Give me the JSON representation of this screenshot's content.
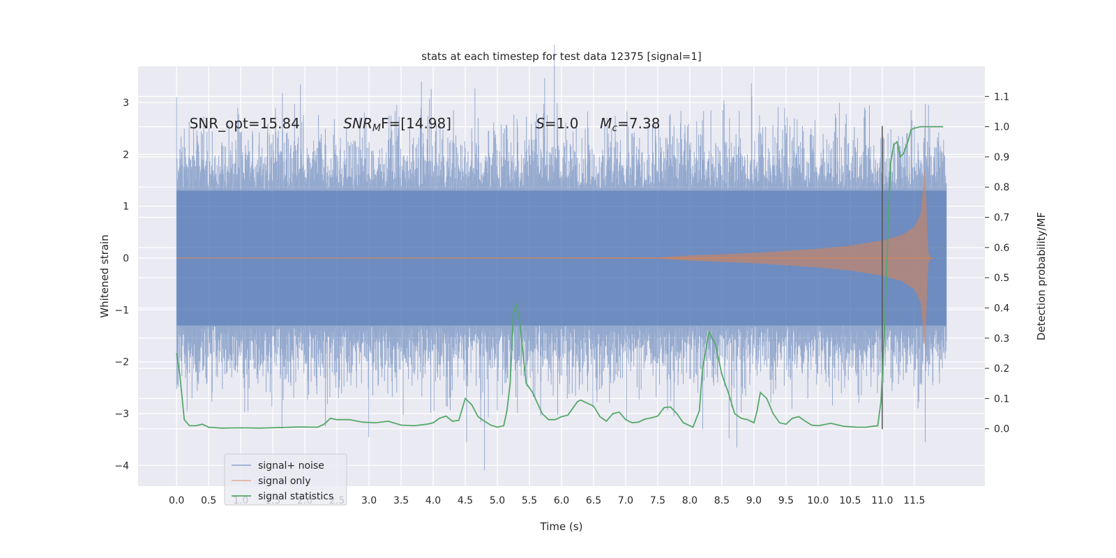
{
  "chart_data": {
    "type": "line",
    "title": "stats at each timestep for test data 12375 [signal=1]",
    "xlabel": "Time (s)",
    "ylabel": "Whitened strain",
    "ylabel_right": "Detection probability/MF",
    "xlim": [
      -0.6,
      12.6
    ],
    "ylim": [
      -4.4,
      3.7
    ],
    "ylim_right": [
      -0.19,
      1.2
    ],
    "xticks": [
      0.0,
      0.5,
      1.0,
      1.5,
      2.0,
      2.5,
      3.0,
      3.5,
      4.0,
      4.5,
      5.0,
      5.5,
      6.0,
      6.5,
      7.0,
      7.5,
      8.0,
      8.5,
      9.0,
      9.5,
      10.0,
      10.5,
      11.0,
      11.5
    ],
    "xtick_labels": [
      "0.0",
      "0.5",
      "1.0",
      "1.5",
      "2.0",
      "2.5",
      "3.0",
      "3.5",
      "4.0",
      "4.5",
      "5.0",
      "5.5",
      "6.0",
      "6.5",
      "7.0",
      "7.5",
      "8.0",
      "8.5",
      "9.0",
      "9.5",
      "10.0",
      "10.5",
      "11.0",
      "11.5"
    ],
    "yticks": [
      -4,
      -3,
      -2,
      -1,
      0,
      1,
      2,
      3
    ],
    "ytick_labels": [
      "−4",
      "−3",
      "−2",
      "−1",
      "0",
      "1",
      "2",
      "3"
    ],
    "yticks_right": [
      0.0,
      0.1,
      0.2,
      0.3,
      0.4,
      0.5,
      0.6,
      0.7,
      0.8,
      0.9,
      1.0,
      1.1
    ],
    "ytick_labels_right": [
      "0.0",
      "0.1",
      "0.2",
      "0.3",
      "0.4",
      "0.5",
      "0.6",
      "0.7",
      "0.8",
      "0.9",
      "1.0",
      "1.1"
    ],
    "grid": true,
    "legend_position": "lower-left",
    "annotations": {
      "snr_opt": "SNR_opt=15.84",
      "snr_mf_symbol": "SNR",
      "snr_mf_sub": "M",
      "snr_mf_rest": "F=[14.98]",
      "s_symbol": "S",
      "s_rest": "=1.0",
      "mc_symbol": "M",
      "mc_sub": "c",
      "mc_rest": "=7.38"
    },
    "vertical_marker": {
      "x": 11.0,
      "y_range": [
        -3.3,
        2.55
      ]
    },
    "series": [
      {
        "name": "signal+ noise",
        "color": "#4c72b0",
        "envelope_band": [
          -1.3,
          1.3
        ],
        "x_range": [
          0.0,
          12.0
        ],
        "notable_peaks": [
          {
            "x": 0.0,
            "y": 3.1
          },
          {
            "x": 1.65,
            "y": 3.18
          },
          {
            "x": 1.93,
            "y": 3.35
          },
          {
            "x": 10.8,
            "y": 2.95
          },
          {
            "x": 11.45,
            "y": 2.85
          },
          {
            "x": 2.32,
            "y": -3.25
          },
          {
            "x": 4.52,
            "y": -3.55
          },
          {
            "x": 4.8,
            "y": -4.1
          },
          {
            "x": 11.67,
            "y": -3.55
          }
        ]
      },
      {
        "name": "signal only",
        "color": "#dd8452",
        "envelope": {
          "x": [
            0.0,
            7.5,
            8.0,
            9.0,
            10.0,
            10.5,
            11.0,
            11.3,
            11.5,
            11.6,
            11.67,
            11.7,
            11.72,
            11.75,
            11.8
          ],
          "amplitude": [
            0.0,
            0.01,
            0.05,
            0.1,
            0.18,
            0.24,
            0.34,
            0.44,
            0.6,
            0.85,
            1.8,
            0.6,
            0.1,
            0.02,
            0.0
          ]
        }
      },
      {
        "name": "signal statistics",
        "color": "#55a868",
        "axis": "right",
        "x": [
          0.0,
          0.05,
          0.12,
          0.2,
          0.3,
          0.4,
          0.5,
          0.7,
          1.0,
          1.3,
          1.6,
          1.9,
          2.2,
          2.3,
          2.4,
          2.5,
          2.7,
          2.9,
          3.1,
          3.3,
          3.5,
          3.7,
          3.9,
          4.0,
          4.1,
          4.2,
          4.3,
          4.4,
          4.5,
          4.6,
          4.7,
          4.8,
          4.9,
          5.0,
          5.1,
          5.15,
          5.2,
          5.25,
          5.3,
          5.35,
          5.45,
          5.55,
          5.7,
          5.8,
          5.9,
          6.0,
          6.1,
          6.25,
          6.3,
          6.4,
          6.5,
          6.6,
          6.7,
          6.8,
          6.9,
          7.0,
          7.1,
          7.2,
          7.3,
          7.4,
          7.5,
          7.6,
          7.7,
          7.8,
          7.9,
          8.05,
          8.15,
          8.2,
          8.3,
          8.4,
          8.5,
          8.6,
          8.7,
          8.8,
          8.9,
          9.0,
          9.05,
          9.1,
          9.2,
          9.3,
          9.4,
          9.5,
          9.6,
          9.7,
          9.8,
          9.9,
          10.0,
          10.2,
          10.4,
          10.6,
          10.75,
          10.85,
          10.93,
          10.98,
          11.03,
          11.08,
          11.13,
          11.18,
          11.23,
          11.28,
          11.33,
          11.4,
          11.45,
          11.5,
          11.6,
          11.7,
          11.8,
          11.9,
          11.95
        ],
        "y": [
          0.25,
          0.18,
          0.03,
          0.01,
          0.01,
          0.015,
          0.005,
          0.002,
          0.003,
          0.002,
          0.004,
          0.006,
          0.005,
          0.015,
          0.035,
          0.03,
          0.03,
          0.022,
          0.02,
          0.025,
          0.012,
          0.01,
          0.015,
          0.02,
          0.035,
          0.042,
          0.025,
          0.028,
          0.1,
          0.08,
          0.04,
          0.025,
          0.012,
          0.005,
          0.01,
          0.06,
          0.15,
          0.38,
          0.41,
          0.35,
          0.15,
          0.12,
          0.05,
          0.03,
          0.03,
          0.04,
          0.045,
          0.09,
          0.095,
          0.085,
          0.075,
          0.04,
          0.025,
          0.05,
          0.055,
          0.03,
          0.02,
          0.022,
          0.032,
          0.036,
          0.042,
          0.07,
          0.072,
          0.05,
          0.02,
          0.005,
          0.06,
          0.2,
          0.32,
          0.28,
          0.18,
          0.12,
          0.05,
          0.035,
          0.03,
          0.02,
          0.06,
          0.12,
          0.1,
          0.05,
          0.02,
          0.015,
          0.035,
          0.04,
          0.025,
          0.012,
          0.01,
          0.018,
          0.008,
          0.005,
          0.005,
          0.008,
          0.01,
          0.09,
          0.3,
          0.6,
          0.88,
          0.94,
          0.95,
          0.9,
          0.91,
          0.95,
          0.99,
          0.995,
          1.0,
          1.0,
          1.0,
          1.0,
          1.0
        ]
      }
    ]
  }
}
